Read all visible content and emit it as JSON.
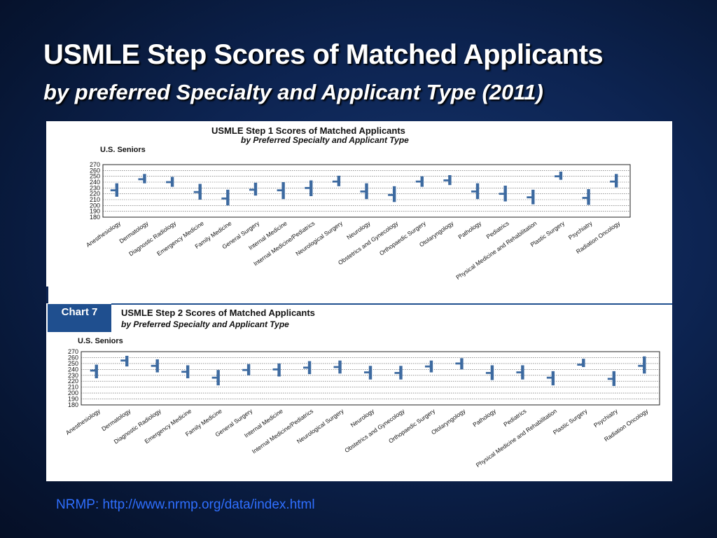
{
  "slide": {
    "title": "USMLE Step Scores of Matched Applicants",
    "subtitle": "by preferred Specialty and Applicant Type (2011)",
    "source": "NRMP: http://www.nrmp.org/data/index.html"
  },
  "colors": {
    "bar": "#3d6aa0",
    "panel_badge": "#1f4f8f",
    "link": "#2f6fff"
  },
  "chart_data": [
    {
      "type": "box",
      "title": "USMLE Step 1 Scores of Matched Applicants",
      "subtitle": "by Preferred Specialty and Applicant Type",
      "group_label": "U.S. Seniors",
      "ylim": [
        180,
        270
      ],
      "yticks": [
        180,
        190,
        200,
        210,
        220,
        230,
        240,
        250,
        260,
        270
      ],
      "grid": true,
      "categories": [
        "Anesthesiology",
        "Dermatology",
        "Diagnostic Radiology",
        "Emergency Medicine",
        "Family Medicine",
        "General Surgery",
        "Internal Medicine",
        "Internal Medicine/Pediatrics",
        "Neurological Surgery",
        "Neurology",
        "Obstetrics and Gynecology",
        "Orthopaedic Surgery",
        "Otolaryngology",
        "Pathology",
        "Pediatrics",
        "Physical Medicine and Rehabilitation",
        "Plastic Surgery",
        "Psychiatry",
        "Radiation Oncology"
      ],
      "low": [
        215,
        238,
        232,
        210,
        200,
        217,
        211,
        216,
        233,
        211,
        206,
        232,
        235,
        211,
        207,
        202,
        244,
        201,
        231
      ],
      "median": [
        226,
        245,
        240,
        223,
        212,
        227,
        226,
        230,
        241,
        224,
        218,
        241,
        243,
        224,
        220,
        214,
        250,
        213,
        241
      ],
      "high": [
        238,
        254,
        249,
        237,
        227,
        239,
        240,
        243,
        251,
        238,
        233,
        250,
        252,
        238,
        234,
        227,
        258,
        228,
        254
      ]
    },
    {
      "type": "box",
      "badge": "Chart 7",
      "title": "USMLE Step 2 Scores of Matched Applicants",
      "subtitle": "by Preferred Specialty and Applicant Type",
      "group_label": "U.S. Seniors",
      "ylim": [
        180,
        270
      ],
      "yticks": [
        180,
        190,
        200,
        210,
        220,
        230,
        240,
        250,
        260,
        270
      ],
      "grid": true,
      "categories": [
        "Anesthesiology",
        "Dermatology",
        "Diagnostic Radiology",
        "Emergency Medicine",
        "Family Medicine",
        "General Surgery",
        "Internal Medicine",
        "Internal Medicine/Pediatrics",
        "Neurological Surgery",
        "Neurology",
        "Obstetrics and Gynecology",
        "Orthopaedic Surgery",
        "Otolaryngology",
        "Pathology",
        "Pediatrics",
        "Physical Medicine and Rehabilitation",
        "Plastic Surgery",
        "Psychiatry",
        "Radiation Oncology"
      ],
      "low": [
        225,
        245,
        235,
        225,
        213,
        230,
        228,
        232,
        233,
        223,
        223,
        235,
        240,
        222,
        223,
        213,
        244,
        212,
        233
      ],
      "median": [
        238,
        255,
        246,
        236,
        226,
        239,
        240,
        243,
        244,
        235,
        234,
        245,
        250,
        234,
        235,
        226,
        248,
        224,
        246
      ],
      "high": [
        248,
        263,
        257,
        247,
        239,
        249,
        250,
        254,
        255,
        246,
        246,
        255,
        259,
        247,
        247,
        237,
        258,
        237,
        262
      ]
    }
  ]
}
